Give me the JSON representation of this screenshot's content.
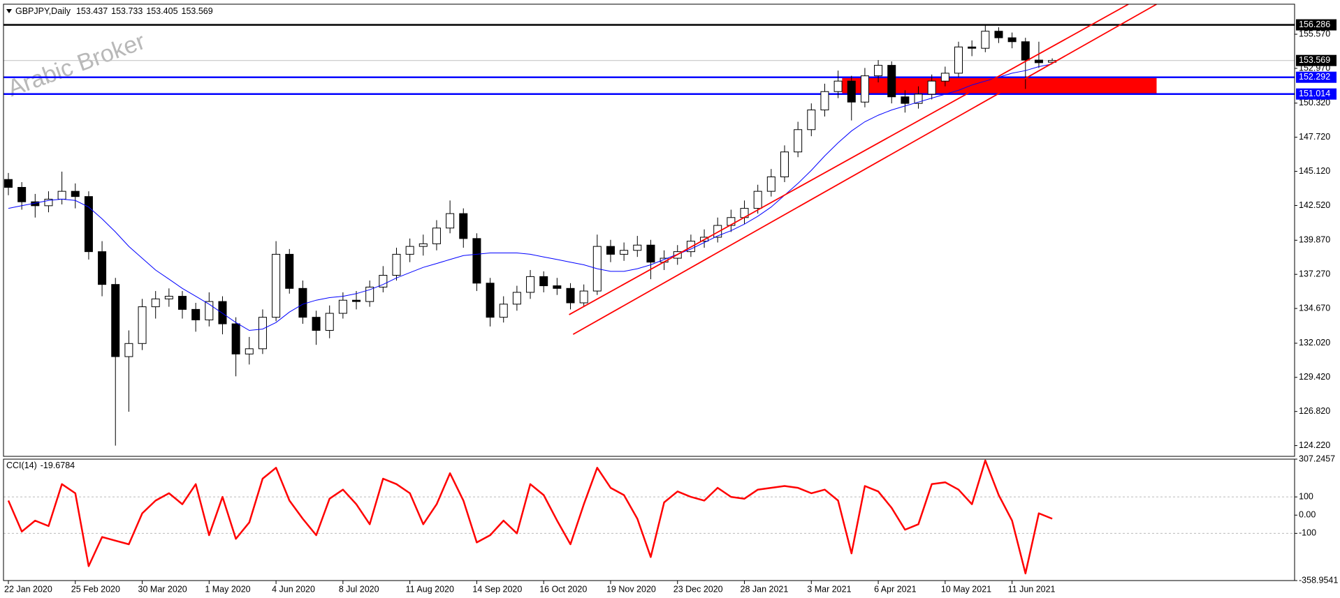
{
  "chart_data": [
    {
      "type": "candlestick",
      "title": "GBPJPY,Daily",
      "watermark": "Arabic Broker",
      "categories": [
        "22 Jan 2020",
        null,
        null,
        null,
        null,
        "25 Feb 2020",
        null,
        null,
        null,
        null,
        "30 Mar 2020",
        null,
        null,
        null,
        null,
        "1 May 2020",
        null,
        null,
        null,
        null,
        "4 Jun 2020",
        null,
        null,
        null,
        null,
        "8 Jul 2020",
        null,
        null,
        null,
        null,
        "11 Aug 2020",
        null,
        null,
        null,
        null,
        "14 Sep 2020",
        null,
        null,
        null,
        null,
        "16 Oct 2020",
        null,
        null,
        null,
        null,
        "19 Nov 2020",
        null,
        null,
        null,
        null,
        "23 Dec 2020",
        null,
        null,
        null,
        null,
        "28 Jan 2021",
        null,
        null,
        null,
        null,
        "3 Mar 2021",
        null,
        null,
        null,
        null,
        "6 Apr 2021",
        null,
        null,
        null,
        null,
        "10 May 2021",
        null,
        null,
        null,
        null,
        "11 Jun 2021",
        null,
        null,
        null
      ],
      "open": [
        144.5,
        143.9,
        142.8,
        142.5,
        143.0,
        143.6,
        143.2,
        139.0,
        136.5,
        131.0,
        132.0,
        134.8,
        135.4,
        135.6,
        134.6,
        133.8,
        135.2,
        133.5,
        131.2,
        131.6,
        134.0,
        138.8,
        136.2,
        134.0,
        133.0,
        134.3,
        135.3,
        135.2,
        136.3,
        137.2,
        138.8,
        139.4,
        139.6,
        140.8,
        141.9,
        140.0,
        136.6,
        134.0,
        135.0,
        135.9,
        137.1,
        136.4,
        136.2,
        135.1,
        136.0,
        139.4,
        138.8,
        139.1,
        139.5,
        138.2,
        138.5,
        139.0,
        139.8,
        140.1,
        141.0,
        141.6,
        142.3,
        143.6,
        144.7,
        146.6,
        148.3,
        149.8,
        151.2,
        152.0,
        150.4,
        152.4,
        153.2,
        150.8,
        150.3,
        151.0,
        152.0,
        152.6,
        154.6,
        154.5,
        155.8,
        155.3,
        155.0,
        153.6,
        153.437
      ],
      "high": [
        145.0,
        144.3,
        143.4,
        143.6,
        145.1,
        144.2,
        143.6,
        139.8,
        137.0,
        133.0,
        135.4,
        136.0,
        136.2,
        136.0,
        135.1,
        135.9,
        135.6,
        134.0,
        132.5,
        134.6,
        139.8,
        139.2,
        136.8,
        134.5,
        134.9,
        135.9,
        136.0,
        136.8,
        137.9,
        139.3,
        140.0,
        140.3,
        141.4,
        142.9,
        142.3,
        140.4,
        137.0,
        135.6,
        136.4,
        137.6,
        137.5,
        137.0,
        136.6,
        136.5,
        140.3,
        139.9,
        139.7,
        140.2,
        139.9,
        139.1,
        139.5,
        140.3,
        140.7,
        141.6,
        142.2,
        142.9,
        144.1,
        145.3,
        147.1,
        148.9,
        150.3,
        151.8,
        152.8,
        152.4,
        153.0,
        153.6,
        153.5,
        151.3,
        151.6,
        152.5,
        153.1,
        155.0,
        155.1,
        156.29,
        156.1,
        155.7,
        155.3,
        155.0,
        153.733
      ],
      "low": [
        143.3,
        142.2,
        141.6,
        142.0,
        142.6,
        142.3,
        138.4,
        135.6,
        124.22,
        126.8,
        131.5,
        133.9,
        134.8,
        133.9,
        132.9,
        133.3,
        132.7,
        129.5,
        130.4,
        131.2,
        133.7,
        135.8,
        133.5,
        131.9,
        132.4,
        133.9,
        134.6,
        134.8,
        135.9,
        136.8,
        138.2,
        138.7,
        139.1,
        140.4,
        139.3,
        136.0,
        133.3,
        133.6,
        134.5,
        135.4,
        135.9,
        135.7,
        134.6,
        134.8,
        135.7,
        138.2,
        138.3,
        138.6,
        136.9,
        137.6,
        138.0,
        138.6,
        139.3,
        139.7,
        140.5,
        141.1,
        141.9,
        143.2,
        144.3,
        146.2,
        147.8,
        149.3,
        150.7,
        149.0,
        150.0,
        151.9,
        150.3,
        149.6,
        149.9,
        150.6,
        151.6,
        152.3,
        153.9,
        154.2,
        154.9,
        154.5,
        151.4,
        153.0,
        153.405
      ],
      "close": [
        143.9,
        142.8,
        142.5,
        143.0,
        143.6,
        143.2,
        139.0,
        136.5,
        131.0,
        132.0,
        134.8,
        135.4,
        135.6,
        134.6,
        133.8,
        135.2,
        133.5,
        131.2,
        131.6,
        134.0,
        138.8,
        136.2,
        134.0,
        133.0,
        134.3,
        135.3,
        135.2,
        136.3,
        137.2,
        138.8,
        139.4,
        139.6,
        140.8,
        141.9,
        140.0,
        136.6,
        134.0,
        135.0,
        135.9,
        137.1,
        136.4,
        136.2,
        135.1,
        136.0,
        139.4,
        138.8,
        139.1,
        139.5,
        138.2,
        138.5,
        139.0,
        139.8,
        140.1,
        141.0,
        141.6,
        142.3,
        143.6,
        144.7,
        146.6,
        148.3,
        149.8,
        151.2,
        152.0,
        150.4,
        152.4,
        153.2,
        150.8,
        150.3,
        151.0,
        152.0,
        152.6,
        154.6,
        154.5,
        155.8,
        155.3,
        155.0,
        153.6,
        153.4,
        153.569
      ],
      "up_color": "#ffffff",
      "down_color": "#000000",
      "outline_color": "#000000",
      "ma": {
        "color": "#0000ff",
        "values": [
          142.3,
          142.5,
          142.7,
          142.9,
          143.0,
          142.9,
          142.4,
          141.5,
          140.5,
          139.4,
          138.5,
          137.6,
          136.9,
          136.2,
          135.6,
          135.0,
          134.3,
          133.6,
          133.0,
          133.1,
          133.6,
          134.4,
          135.0,
          135.3,
          135.5,
          135.6,
          135.8,
          136.1,
          136.5,
          137.0,
          137.4,
          137.8,
          138.1,
          138.4,
          138.7,
          138.8,
          138.9,
          138.9,
          138.9,
          138.8,
          138.6,
          138.4,
          138.2,
          138.0,
          137.7,
          137.5,
          137.5,
          137.7,
          138.0,
          138.4,
          138.8,
          139.2,
          139.7,
          140.2,
          140.6,
          141.1,
          141.7,
          142.4,
          143.3,
          144.2,
          145.2,
          146.3,
          147.3,
          148.2,
          148.9,
          149.4,
          149.8,
          150.1,
          150.4,
          150.7,
          151.0,
          151.3,
          151.7,
          152.0,
          152.3,
          152.6,
          152.8,
          153.1,
          153.3
        ]
      },
      "levels": [
        {
          "value": 156.286,
          "color": "#000000"
        },
        {
          "value": 152.292,
          "color": "#0000ff"
        },
        {
          "value": 151.014,
          "color": "#0000ff"
        }
      ],
      "zone": {
        "x": [
          62.3,
          85.8
        ],
        "y": [
          151.014,
          152.292
        ],
        "color": "#ff0000"
      },
      "trendlines": [
        {
          "x": [
            41.9,
            83.7
          ],
          "y": [
            134.2,
            157.86
          ],
          "color": "#ff0000"
        },
        {
          "x": [
            42.2,
            85.8
          ],
          "y": [
            132.7,
            157.86
          ],
          "color": "#ff0000"
        }
      ],
      "ylim": [
        123.4,
        157.86
      ],
      "yticks": [
        {
          "value": 155.57,
          "label": "155.570"
        },
        {
          "value": 152.97,
          "label": "152.970"
        },
        {
          "value": 150.32,
          "label": "150.320"
        },
        {
          "value": 147.72,
          "label": "147.720"
        },
        {
          "value": 145.12,
          "label": "145.120"
        },
        {
          "value": 142.52,
          "label": "142.520"
        },
        {
          "value": 139.87,
          "label": "139.870"
        },
        {
          "value": 137.27,
          "label": "137.270"
        },
        {
          "value": 134.67,
          "label": "134.670"
        },
        {
          "value": 132.02,
          "label": "132.020"
        },
        {
          "value": 129.42,
          "label": "129.420"
        },
        {
          "value": 126.82,
          "label": "126.820"
        },
        {
          "value": 124.22,
          "label": "124.220"
        }
      ]
    },
    {
      "type": "line",
      "title": "CCI(14)",
      "color": "#ff0000",
      "values": [
        80,
        -90,
        -30,
        -60,
        170,
        120,
        -280,
        -120,
        -140,
        -160,
        10,
        80,
        120,
        60,
        170,
        -110,
        100,
        -130,
        -40,
        200,
        260,
        80,
        -20,
        -110,
        90,
        140,
        60,
        -50,
        200,
        170,
        120,
        -50,
        60,
        230,
        80,
        -150,
        -110,
        -30,
        -100,
        170,
        110,
        -30,
        -160,
        60,
        260,
        150,
        110,
        -20,
        -230,
        70,
        130,
        100,
        80,
        150,
        100,
        90,
        140,
        150,
        160,
        150,
        120,
        140,
        80,
        -210,
        160,
        130,
        40,
        -80,
        -50,
        170,
        180,
        140,
        60,
        300,
        110,
        -30,
        -320,
        10,
        -19.6784
      ],
      "levels": [
        100,
        -100
      ],
      "ylim": [
        -358.9541,
        307.2457
      ],
      "yticks": [
        307.2457,
        100,
        {
          "value": 0,
          "label": "0.00"
        },
        -100,
        -358.9541
      ]
    }
  ]
}
